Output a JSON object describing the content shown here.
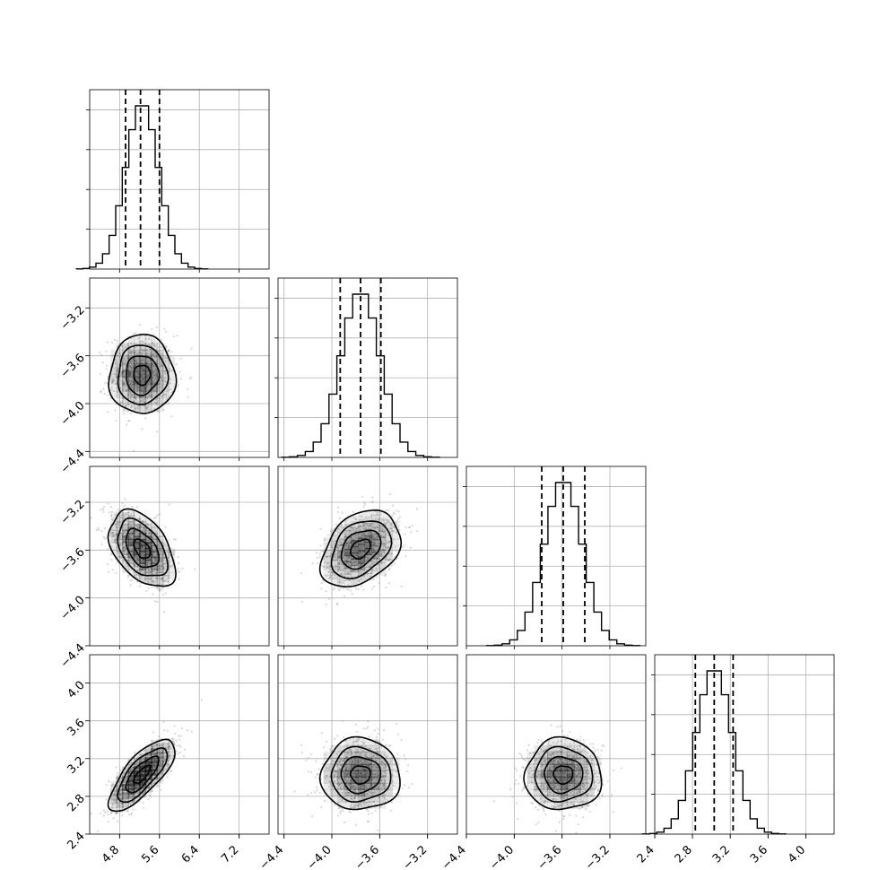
{
  "chart_data": {
    "type": "corner",
    "grid": true,
    "parameters": [
      {
        "index": 0,
        "range": [
          4.2,
          7.8
        ],
        "ticks": [
          4.8,
          5.6,
          6.4,
          7.2
        ],
        "tick_labels": [
          "4.8",
          "5.6",
          "6.4",
          "7.2"
        ],
        "mean": 5.25,
        "sd": 0.33,
        "quantiles": [
          4.92,
          5.22,
          5.6
        ]
      },
      {
        "index": 1,
        "range": [
          -4.45,
          -2.95
        ],
        "ticks": [
          -4.4,
          -4.0,
          -3.6,
          -3.2
        ],
        "tick_labels": [
          "−4.4",
          "−4.0",
          "−3.6",
          "−3.2"
        ],
        "mean": -3.76,
        "sd": 0.165,
        "quantiles": [
          -3.93,
          -3.76,
          -3.59
        ]
      },
      {
        "index": 2,
        "range": [
          -4.4,
          -2.9
        ],
        "ticks": [
          -4.4,
          -4.0,
          -3.6,
          -3.2
        ],
        "tick_labels": [
          "−4.4",
          "−4.0",
          "−3.6",
          "−3.2"
        ],
        "mean": -3.59,
        "sd": 0.16,
        "quantiles": [
          -3.77,
          -3.59,
          -3.41
        ]
      },
      {
        "index": 3,
        "range": [
          2.4,
          4.3
        ],
        "ticks": [
          2.4,
          2.8,
          3.2,
          3.6,
          4.0
        ],
        "tick_labels": [
          "2.4",
          "2.8",
          "3.2",
          "3.6",
          "4.0"
        ],
        "mean": 3.03,
        "sd": 0.19,
        "quantiles": [
          2.83,
          3.03,
          3.23
        ]
      }
    ],
    "correlations": [
      {
        "x": 0,
        "y": 1,
        "rho": 0.0
      },
      {
        "x": 0,
        "y": 2,
        "rho": -0.45
      },
      {
        "x": 1,
        "y": 2,
        "rho": 0.35
      },
      {
        "x": 0,
        "y": 3,
        "rho": 0.75
      },
      {
        "x": 1,
        "y": 3,
        "rho": 0.0
      },
      {
        "x": 2,
        "y": 3,
        "rho": 0.0
      }
    ],
    "contour_levels_sigma": [
      0.5,
      1.0,
      1.5,
      2.0
    ],
    "histogram_bins": 20,
    "colors": {
      "line": "#000000",
      "points": "#8c8c8c",
      "grid": "#b0b0b0"
    }
  }
}
